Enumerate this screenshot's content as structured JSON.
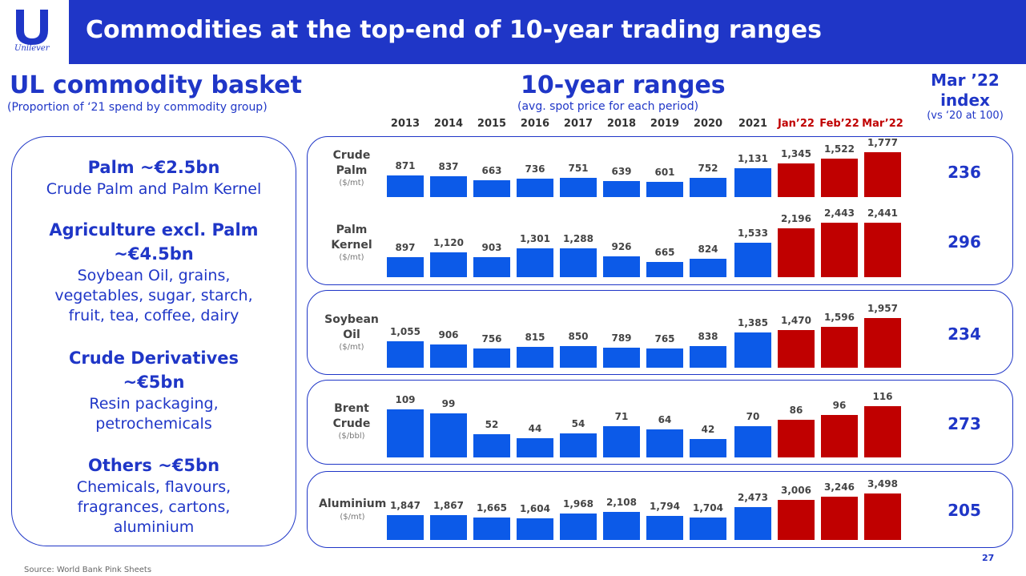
{
  "header": {
    "title": "Commodities at the top-end of 10-year trading ranges",
    "logo_text": "Unilever",
    "bar_color": "#1f36c7"
  },
  "basket": {
    "title": "UL commodity basket",
    "subtitle": "(Proportion of ‘21 spend by commodity group)",
    "groups": [
      {
        "head": [
          "Palm ~€2.5bn"
        ],
        "body": [
          "Crude Palm and Palm Kernel"
        ]
      },
      {
        "head": [
          "Agriculture excl. Palm",
          "~€4.5bn"
        ],
        "body": [
          "Soybean Oil, grains,",
          "vegetables, sugar, starch,",
          "fruit, tea, coffee, dairy"
        ]
      },
      {
        "head": [
          "Crude Derivatives",
          "~€5bn"
        ],
        "body": [
          "Resin packaging,",
          "petrochemicals"
        ]
      },
      {
        "head": [
          "Others ~€5bn"
        ],
        "body": [
          "Chemicals, flavours,",
          "fragrances, cartons,",
          "aluminium"
        ]
      }
    ]
  },
  "ranges": {
    "title": "10-year ranges",
    "subtitle": "(avg. spot price for each period)"
  },
  "index_header": {
    "title_line1": "Mar ’22",
    "title_line2": "index",
    "subtitle": "(vs ‘20 at 100)"
  },
  "colors": {
    "historic": "#0c5ae8",
    "recent": "#c00000",
    "accent": "#1f36c7"
  },
  "chart_data": {
    "type": "bar",
    "title": "10-year ranges",
    "subtitle": "(avg. spot price for each period)",
    "categories": [
      "2013",
      "2014",
      "2015",
      "2016",
      "2017",
      "2018",
      "2019",
      "2020",
      "2021",
      "Jan’22",
      "Feb’22",
      "Mar’22"
    ],
    "highlighted_categories": [
      "Jan’22",
      "Feb’22",
      "Mar’22"
    ],
    "series": [
      {
        "name": "Crude Palm",
        "unit": "($/mt)",
        "values": [
          "871",
          "837",
          "663",
          "736",
          "751",
          "639",
          "601",
          "752",
          "1,131",
          "1,345",
          "1,522",
          "1,777"
        ],
        "index": "236"
      },
      {
        "name": "Palm Kernel",
        "unit": "($/mt)",
        "values": [
          "897",
          "1,120",
          "903",
          "1,301",
          "1,288",
          "926",
          "665",
          "824",
          "1,533",
          "2,196",
          "2,443",
          "2,441"
        ],
        "index": "296"
      },
      {
        "name": "Soybean Oil",
        "unit": "($/mt)",
        "values": [
          "1,055",
          "906",
          "756",
          "815",
          "850",
          "789",
          "765",
          "838",
          "1,385",
          "1,470",
          "1,596",
          "1,957"
        ],
        "index": "234"
      },
      {
        "name": "Brent Crude",
        "unit": "($/bbl)",
        "values": [
          "109",
          "99",
          "52",
          "44",
          "54",
          "71",
          "64",
          "42",
          "70",
          "86",
          "96",
          "116"
        ],
        "index": "273"
      },
      {
        "name": "Aluminium",
        "unit": "($/mt)",
        "values": [
          "1,847",
          "1,867",
          "1,665",
          "1,604",
          "1,968",
          "2,108",
          "1,794",
          "1,704",
          "2,473",
          "3,006",
          "3,246",
          "3,498"
        ],
        "index": "205"
      }
    ]
  },
  "footer": {
    "source": "Source: World Bank Pink Sheets",
    "page_number": "27"
  }
}
